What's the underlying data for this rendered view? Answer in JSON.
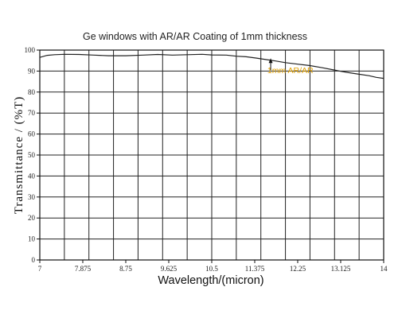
{
  "chart_data": {
    "type": "line",
    "title": "Ge windows with AR/AR Coating of 1mm thickness",
    "xlabel": "Wavelength/(micron)",
    "ylabel": "Transmittance / (%T)",
    "x_ticks": [
      "7",
      "7.875",
      "8.75",
      "9.625",
      "10.5",
      "11.375",
      "12.25",
      "13.125",
      "14"
    ],
    "y_ticks": [
      "0",
      "10",
      "20",
      "30",
      "40",
      "50",
      "60",
      "70",
      "80",
      "90",
      "100"
    ],
    "xlim": [
      7,
      14
    ],
    "ylim": [
      0,
      100
    ],
    "grid": true,
    "annotation": {
      "text": "1mm AR/AR",
      "color": "#E0A000",
      "points_to": [
        11.7,
        96.5
      ],
      "at": [
        12.1,
        89
      ]
    },
    "series": [
      {
        "name": "1mm AR/AR",
        "color": "#222222",
        "x": [
          7.0,
          7.15,
          7.3,
          7.5,
          7.8,
          8.1,
          8.4,
          8.75,
          9.1,
          9.4,
          9.7,
          10.0,
          10.3,
          10.5,
          10.8,
          11.0,
          11.2,
          11.4,
          11.6,
          11.8,
          12.0,
          12.25,
          12.5,
          12.75,
          13.0,
          13.125,
          13.3,
          13.5,
          13.7,
          13.85,
          14.0
        ],
        "y": [
          96.5,
          97.5,
          97.8,
          98.0,
          97.9,
          97.6,
          97.3,
          97.3,
          97.6,
          97.9,
          97.6,
          97.8,
          98.0,
          97.7,
          97.6,
          97.1,
          96.8,
          96.2,
          95.5,
          94.8,
          94.0,
          93.3,
          92.6,
          91.6,
          90.5,
          89.9,
          89.2,
          88.5,
          87.8,
          87.0,
          86.5
        ]
      }
    ]
  }
}
